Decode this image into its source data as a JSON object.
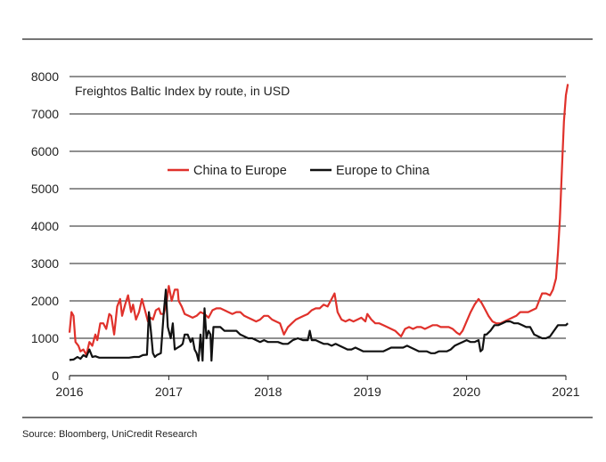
{
  "chart_data": {
    "type": "line",
    "title": "Freightos Baltic Index by route, in USD",
    "ylim": [
      0,
      8000
    ],
    "xlim": [
      2016,
      2021
    ],
    "y_ticks": [
      "0",
      "1000",
      "2000",
      "3000",
      "4000",
      "5000",
      "6000",
      "7000",
      "8000"
    ],
    "x_ticks": [
      "2016",
      "2017",
      "2018",
      "2019",
      "2020",
      "2021"
    ],
    "grid": "horizontal",
    "legend_position": "upper-center",
    "series": [
      {
        "name": "China to Europe",
        "color": "#e0312b",
        "points": [
          [
            2016.0,
            1150
          ],
          [
            2016.02,
            1700
          ],
          [
            2016.04,
            1600
          ],
          [
            2016.06,
            900
          ],
          [
            2016.09,
            800
          ],
          [
            2016.11,
            650
          ],
          [
            2016.14,
            700
          ],
          [
            2016.17,
            550
          ],
          [
            2016.2,
            900
          ],
          [
            2016.23,
            800
          ],
          [
            2016.26,
            1100
          ],
          [
            2016.28,
            950
          ],
          [
            2016.31,
            1400
          ],
          [
            2016.34,
            1400
          ],
          [
            2016.37,
            1250
          ],
          [
            2016.4,
            1650
          ],
          [
            2016.42,
            1600
          ],
          [
            2016.45,
            1100
          ],
          [
            2016.48,
            1850
          ],
          [
            2016.51,
            2050
          ],
          [
            2016.53,
            1600
          ],
          [
            2016.56,
            1900
          ],
          [
            2016.59,
            2150
          ],
          [
            2016.62,
            1700
          ],
          [
            2016.64,
            1900
          ],
          [
            2016.67,
            1500
          ],
          [
            2016.7,
            1700
          ],
          [
            2016.73,
            2050
          ],
          [
            2016.76,
            1750
          ],
          [
            2016.79,
            1450
          ],
          [
            2016.82,
            1550
          ],
          [
            2016.84,
            1500
          ],
          [
            2016.87,
            1750
          ],
          [
            2016.9,
            1800
          ],
          [
            2016.92,
            1650
          ],
          [
            2016.95,
            1650
          ],
          [
            2016.98,
            2000
          ],
          [
            2017.0,
            2400
          ],
          [
            2017.03,
            2000
          ],
          [
            2017.06,
            2300
          ],
          [
            2017.09,
            2300
          ],
          [
            2017.1,
            2000
          ],
          [
            2017.13,
            1850
          ],
          [
            2017.16,
            1650
          ],
          [
            2017.2,
            1600
          ],
          [
            2017.24,
            1550
          ],
          [
            2017.28,
            1600
          ],
          [
            2017.32,
            1700
          ],
          [
            2017.36,
            1650
          ],
          [
            2017.4,
            1550
          ],
          [
            2017.44,
            1750
          ],
          [
            2017.48,
            1800
          ],
          [
            2017.52,
            1800
          ],
          [
            2017.56,
            1750
          ],
          [
            2017.6,
            1700
          ],
          [
            2017.64,
            1650
          ],
          [
            2017.68,
            1700
          ],
          [
            2017.72,
            1700
          ],
          [
            2017.76,
            1600
          ],
          [
            2017.8,
            1550
          ],
          [
            2017.84,
            1500
          ],
          [
            2017.88,
            1450
          ],
          [
            2017.92,
            1500
          ],
          [
            2017.96,
            1600
          ],
          [
            2018.0,
            1600
          ],
          [
            2018.04,
            1500
          ],
          [
            2018.08,
            1450
          ],
          [
            2018.12,
            1400
          ],
          [
            2018.16,
            1100
          ],
          [
            2018.2,
            1300
          ],
          [
            2018.24,
            1400
          ],
          [
            2018.28,
            1500
          ],
          [
            2018.32,
            1550
          ],
          [
            2018.36,
            1600
          ],
          [
            2018.4,
            1650
          ],
          [
            2018.44,
            1750
          ],
          [
            2018.48,
            1800
          ],
          [
            2018.52,
            1800
          ],
          [
            2018.56,
            1900
          ],
          [
            2018.6,
            1850
          ],
          [
            2018.64,
            2050
          ],
          [
            2018.67,
            2200
          ],
          [
            2018.7,
            1700
          ],
          [
            2018.74,
            1500
          ],
          [
            2018.78,
            1450
          ],
          [
            2018.82,
            1500
          ],
          [
            2018.86,
            1450
          ],
          [
            2018.9,
            1500
          ],
          [
            2018.94,
            1550
          ],
          [
            2018.98,
            1450
          ],
          [
            2019.0,
            1650
          ],
          [
            2019.04,
            1500
          ],
          [
            2019.08,
            1400
          ],
          [
            2019.12,
            1400
          ],
          [
            2019.16,
            1350
          ],
          [
            2019.2,
            1300
          ],
          [
            2019.24,
            1250
          ],
          [
            2019.28,
            1200
          ],
          [
            2019.32,
            1100
          ],
          [
            2019.34,
            1050
          ],
          [
            2019.38,
            1250
          ],
          [
            2019.42,
            1300
          ],
          [
            2019.46,
            1250
          ],
          [
            2019.5,
            1300
          ],
          [
            2019.54,
            1300
          ],
          [
            2019.58,
            1250
          ],
          [
            2019.62,
            1300
          ],
          [
            2019.66,
            1350
          ],
          [
            2019.7,
            1350
          ],
          [
            2019.74,
            1300
          ],
          [
            2019.78,
            1300
          ],
          [
            2019.82,
            1300
          ],
          [
            2019.86,
            1250
          ],
          [
            2019.9,
            1150
          ],
          [
            2019.93,
            1100
          ],
          [
            2019.96,
            1200
          ],
          [
            2020.0,
            1450
          ],
          [
            2020.04,
            1700
          ],
          [
            2020.08,
            1900
          ],
          [
            2020.12,
            2050
          ],
          [
            2020.15,
            1950
          ],
          [
            2020.18,
            1800
          ],
          [
            2020.22,
            1600
          ],
          [
            2020.26,
            1450
          ],
          [
            2020.3,
            1400
          ],
          [
            2020.34,
            1400
          ],
          [
            2020.38,
            1450
          ],
          [
            2020.42,
            1500
          ],
          [
            2020.46,
            1550
          ],
          [
            2020.5,
            1600
          ],
          [
            2020.54,
            1700
          ],
          [
            2020.58,
            1700
          ],
          [
            2020.62,
            1700
          ],
          [
            2020.66,
            1750
          ],
          [
            2020.7,
            1800
          ],
          [
            2020.73,
            2000
          ],
          [
            2020.76,
            2200
          ],
          [
            2020.8,
            2200
          ],
          [
            2020.84,
            2150
          ],
          [
            2020.87,
            2300
          ],
          [
            2020.9,
            2600
          ],
          [
            2020.92,
            3300
          ],
          [
            2020.94,
            4200
          ],
          [
            2020.96,
            5500
          ],
          [
            2020.98,
            6800
          ],
          [
            2021.0,
            7500
          ],
          [
            2021.02,
            7800
          ]
        ]
      },
      {
        "name": "Europe to China",
        "color": "#111111",
        "points": [
          [
            2016.0,
            420
          ],
          [
            2016.04,
            430
          ],
          [
            2016.08,
            500
          ],
          [
            2016.11,
            450
          ],
          [
            2016.14,
            550
          ],
          [
            2016.17,
            500
          ],
          [
            2016.2,
            700
          ],
          [
            2016.23,
            500
          ],
          [
            2016.26,
            520
          ],
          [
            2016.3,
            480
          ],
          [
            2016.35,
            480
          ],
          [
            2016.4,
            480
          ],
          [
            2016.45,
            480
          ],
          [
            2016.5,
            480
          ],
          [
            2016.55,
            480
          ],
          [
            2016.6,
            480
          ],
          [
            2016.65,
            500
          ],
          [
            2016.7,
            500
          ],
          [
            2016.74,
            550
          ],
          [
            2016.78,
            560
          ],
          [
            2016.8,
            1700
          ],
          [
            2016.82,
            1200
          ],
          [
            2016.84,
            600
          ],
          [
            2016.86,
            500
          ],
          [
            2016.88,
            550
          ],
          [
            2016.92,
            600
          ],
          [
            2016.95,
            1700
          ],
          [
            2016.97,
            2300
          ],
          [
            2016.99,
            1300
          ],
          [
            2017.02,
            1000
          ],
          [
            2017.04,
            1400
          ],
          [
            2017.06,
            700
          ],
          [
            2017.09,
            750
          ],
          [
            2017.12,
            800
          ],
          [
            2017.14,
            850
          ],
          [
            2017.16,
            1100
          ],
          [
            2017.19,
            1100
          ],
          [
            2017.22,
            900
          ],
          [
            2017.24,
            1000
          ],
          [
            2017.26,
            700
          ],
          [
            2017.28,
            600
          ],
          [
            2017.3,
            400
          ],
          [
            2017.32,
            1100
          ],
          [
            2017.34,
            400
          ],
          [
            2017.36,
            1800
          ],
          [
            2017.38,
            1000
          ],
          [
            2017.4,
            1200
          ],
          [
            2017.42,
            1100
          ],
          [
            2017.43,
            400
          ],
          [
            2017.45,
            1300
          ],
          [
            2017.48,
            1300
          ],
          [
            2017.52,
            1300
          ],
          [
            2017.56,
            1200
          ],
          [
            2017.6,
            1200
          ],
          [
            2017.64,
            1200
          ],
          [
            2017.68,
            1200
          ],
          [
            2017.72,
            1100
          ],
          [
            2017.76,
            1050
          ],
          [
            2017.8,
            1000
          ],
          [
            2017.84,
            1000
          ],
          [
            2017.88,
            950
          ],
          [
            2017.92,
            900
          ],
          [
            2017.96,
            950
          ],
          [
            2018.0,
            900
          ],
          [
            2018.05,
            900
          ],
          [
            2018.1,
            900
          ],
          [
            2018.15,
            850
          ],
          [
            2018.2,
            850
          ],
          [
            2018.25,
            950
          ],
          [
            2018.3,
            1000
          ],
          [
            2018.35,
            950
          ],
          [
            2018.4,
            950
          ],
          [
            2018.42,
            1200
          ],
          [
            2018.44,
            950
          ],
          [
            2018.48,
            950
          ],
          [
            2018.52,
            900
          ],
          [
            2018.56,
            850
          ],
          [
            2018.6,
            850
          ],
          [
            2018.64,
            800
          ],
          [
            2018.68,
            850
          ],
          [
            2018.72,
            800
          ],
          [
            2018.76,
            750
          ],
          [
            2018.8,
            700
          ],
          [
            2018.84,
            700
          ],
          [
            2018.88,
            750
          ],
          [
            2018.92,
            700
          ],
          [
            2018.96,
            650
          ],
          [
            2019.0,
            650
          ],
          [
            2019.04,
            650
          ],
          [
            2019.08,
            650
          ],
          [
            2019.12,
            650
          ],
          [
            2019.16,
            650
          ],
          [
            2019.2,
            700
          ],
          [
            2019.24,
            750
          ],
          [
            2019.28,
            750
          ],
          [
            2019.32,
            750
          ],
          [
            2019.36,
            750
          ],
          [
            2019.4,
            800
          ],
          [
            2019.44,
            750
          ],
          [
            2019.48,
            700
          ],
          [
            2019.52,
            650
          ],
          [
            2019.56,
            650
          ],
          [
            2019.6,
            650
          ],
          [
            2019.64,
            600
          ],
          [
            2019.68,
            600
          ],
          [
            2019.72,
            650
          ],
          [
            2019.76,
            650
          ],
          [
            2019.8,
            650
          ],
          [
            2019.84,
            700
          ],
          [
            2019.88,
            800
          ],
          [
            2019.92,
            850
          ],
          [
            2019.96,
            900
          ],
          [
            2020.0,
            950
          ],
          [
            2020.04,
            900
          ],
          [
            2020.08,
            900
          ],
          [
            2020.12,
            950
          ],
          [
            2020.14,
            650
          ],
          [
            2020.16,
            700
          ],
          [
            2020.18,
            1100
          ],
          [
            2020.2,
            1100
          ],
          [
            2020.24,
            1200
          ],
          [
            2020.28,
            1350
          ],
          [
            2020.32,
            1350
          ],
          [
            2020.36,
            1400
          ],
          [
            2020.4,
            1450
          ],
          [
            2020.44,
            1450
          ],
          [
            2020.48,
            1400
          ],
          [
            2020.52,
            1400
          ],
          [
            2020.56,
            1350
          ],
          [
            2020.6,
            1300
          ],
          [
            2020.64,
            1300
          ],
          [
            2020.68,
            1100
          ],
          [
            2020.72,
            1050
          ],
          [
            2020.76,
            1000
          ],
          [
            2020.8,
            1000
          ],
          [
            2020.84,
            1050
          ],
          [
            2020.88,
            1200
          ],
          [
            2020.92,
            1350
          ],
          [
            2020.96,
            1350
          ],
          [
            2021.0,
            1350
          ],
          [
            2021.02,
            1400
          ]
        ]
      }
    ]
  },
  "footer": {
    "source": "Source: Bloomberg, UniCredit Research"
  }
}
